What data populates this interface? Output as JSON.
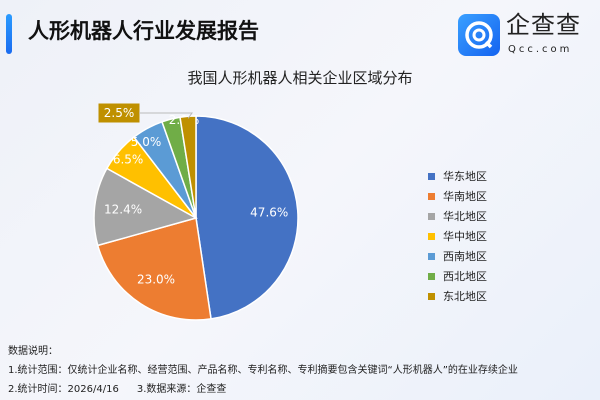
{
  "header": {
    "title": "人形机器人行业发展报告",
    "logo_text": "企查查",
    "logo_sub": "Qcc.com"
  },
  "chart_data": {
    "type": "pie",
    "title": "我国人形机器人相关企业区域分布",
    "categories": [
      "华东地区",
      "华南地区",
      "华北地区",
      "华中地区",
      "西南地区",
      "西北地区",
      "东北地区"
    ],
    "values": [
      47.6,
      23.0,
      12.4,
      6.5,
      5.0,
      2.9,
      2.5
    ],
    "labels": [
      "47.6%",
      "23.0%",
      "12.4%",
      "6.5%",
      "5.0%",
      "2.9%",
      "2.5%"
    ],
    "colors": [
      "#4472c4",
      "#ed7d31",
      "#a5a5a5",
      "#ffc000",
      "#5b9bd5",
      "#70ad47",
      "#bf9000"
    ],
    "start": "12 o'clock, clockwise",
    "legend_position": "right"
  },
  "notes": {
    "heading": "数据说明：",
    "line1": "1.统计范围：仅统计企业名称、经营范围、产品名称、专利名称、专利摘要包含关键词“人形机器人”的在业存续企业",
    "line2a": "2.统计时间：2026/4/16",
    "line2b": "3.数据来源：企查查"
  }
}
